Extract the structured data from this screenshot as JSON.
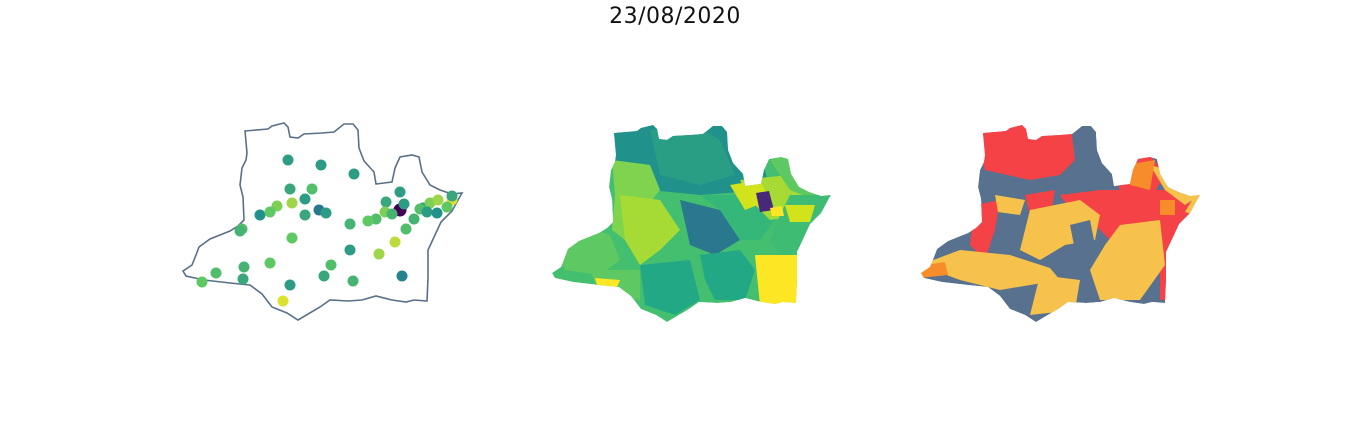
{
  "title": "23/08/2020",
  "panels": [
    {
      "kind": "point-map",
      "outline_color": "#5a7088"
    },
    {
      "kind": "choropleth-continuous"
    },
    {
      "kind": "choropleth-categorical"
    }
  ],
  "colors": {
    "viridis": [
      "#440154",
      "#3b528b",
      "#21918c",
      "#5ec962",
      "#fde725"
    ],
    "category_gray": "#58718e",
    "category_yellow": "#f7c24c",
    "category_red": "#f44246",
    "category_orange": "#f68d2a"
  },
  "point_values": [
    0.55,
    0.55,
    0.55,
    0.6,
    0.7,
    0.8,
    0.85,
    0.55,
    0.5,
    0.75,
    0.7,
    0.65,
    0.6,
    0.4,
    0.55,
    0.65,
    0.75,
    0.55,
    0.85,
    0.9,
    0.7,
    0.65,
    0.55,
    0.0,
    0.6,
    0.8,
    0.55,
    0.65,
    0.7,
    0.75,
    0.55,
    0.5,
    0.95,
    0.8,
    0.65,
    0.7,
    0.75,
    0.6,
    0.75,
    0.55,
    0.95,
    0.6,
    0.7,
    0.65,
    0.45,
    0.7,
    0.85,
    0.75,
    0.6,
    0.55
  ]
}
